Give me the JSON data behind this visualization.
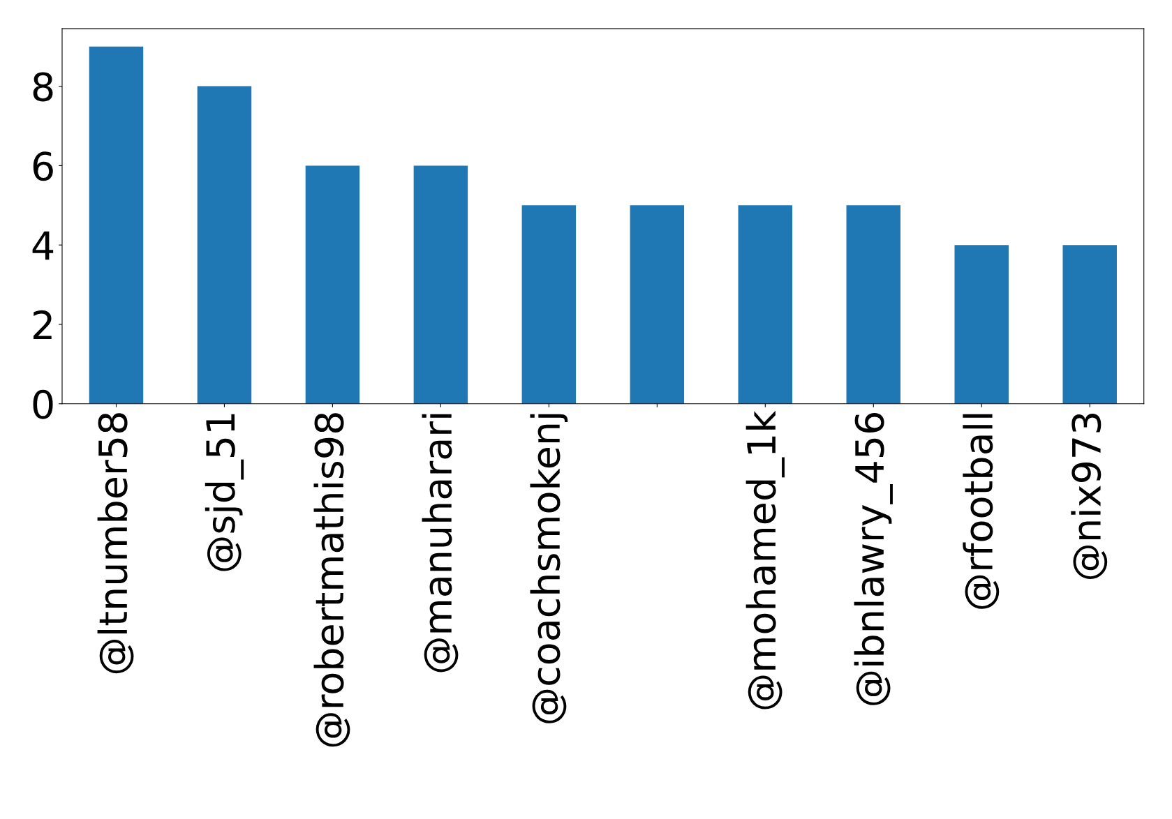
{
  "chart_data": {
    "type": "bar",
    "categories": [
      "@ltnumber58",
      "@sjd_51",
      "@robertmathis98",
      "@manuharari",
      "@coachsmokenj",
      null,
      "@mohamed_1k",
      "@ibnlawry_456",
      "@rfootball",
      "@nix973"
    ],
    "values": [
      9,
      8,
      6,
      6,
      5,
      5,
      5,
      5,
      4,
      4
    ],
    "color": "#1f77b4",
    "ylim": [
      0,
      9.45
    ],
    "yticks": [
      0,
      2,
      4,
      6,
      8
    ],
    "grid": false,
    "legend": false
  }
}
